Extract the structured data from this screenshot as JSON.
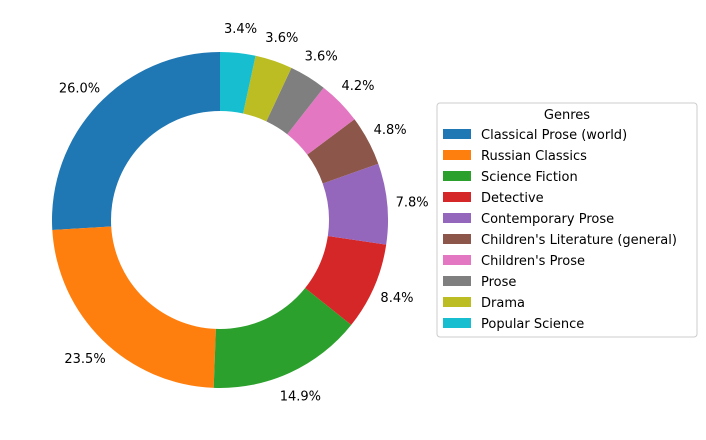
{
  "chart_data": {
    "type": "pie",
    "style": "donut",
    "start_angle_deg": 90,
    "direction": "counterclockwise",
    "legend_title": "Genres",
    "legend_placement": "right",
    "slices": [
      {
        "label": "Classical Prose (world)",
        "value": 26.0,
        "pct_label": "26.0%",
        "color": "#1f77b4"
      },
      {
        "label": "Russian Classics",
        "value": 23.5,
        "pct_label": "23.5%",
        "color": "#ff7f0e"
      },
      {
        "label": "Science Fiction",
        "value": 14.9,
        "pct_label": "14.9%",
        "color": "#2ca02c"
      },
      {
        "label": "Detective",
        "value": 8.4,
        "pct_label": "8.4%",
        "color": "#d62728"
      },
      {
        "label": "Contemporary Prose",
        "value": 7.8,
        "pct_label": "7.8%",
        "color": "#9467bd"
      },
      {
        "label": "Children's Literature (general)",
        "value": 4.8,
        "pct_label": "4.8%",
        "color": "#8c564b"
      },
      {
        "label": "Children's Prose",
        "value": 4.2,
        "pct_label": "4.2%",
        "color": "#e377c2"
      },
      {
        "label": "Prose",
        "value": 3.6,
        "pct_label": "3.6%",
        "color": "#7f7f7f"
      },
      {
        "label": "Drama",
        "value": 3.6,
        "pct_label": "3.6%",
        "color": "#bcbd22"
      },
      {
        "label": "Popular Science",
        "value": 3.4,
        "pct_label": "3.4%",
        "color": "#17becf"
      }
    ]
  }
}
